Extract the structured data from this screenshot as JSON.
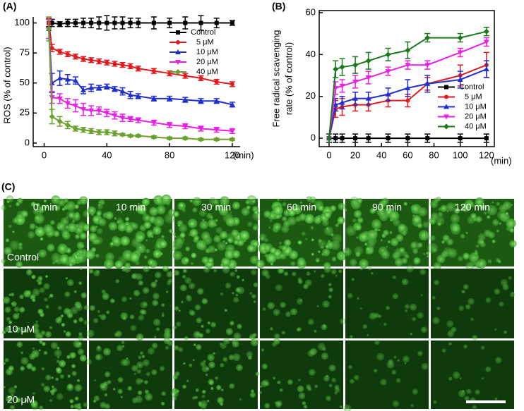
{
  "chart_data": [
    {
      "type": "line",
      "title": "(A)",
      "y_label": "ROS (% of control)",
      "x_label": "(min)",
      "x": [
        3,
        5,
        10,
        15,
        20,
        25,
        30,
        35,
        40,
        45,
        50,
        55,
        60,
        70,
        80,
        90,
        100,
        110,
        120
      ],
      "xlim": [
        -7,
        125
      ],
      "xticks": [
        0,
        40,
        80,
        120
      ],
      "ylim": [
        -3,
        105
      ],
      "yticks": [
        0,
        25,
        50,
        75,
        100
      ],
      "legend": "upper right",
      "series": [
        {
          "name": "Control",
          "color": "#000000",
          "marker": "square",
          "values": [
            100,
            100,
            99,
            100,
            100,
            100,
            100,
            100,
            100,
            100,
            100,
            100,
            100,
            100,
            100,
            100,
            100,
            100,
            100
          ],
          "errors": [
            3,
            3,
            2,
            3,
            3,
            4,
            4,
            5,
            6,
            5,
            5,
            4,
            4,
            5,
            4,
            5,
            6,
            4,
            2
          ]
        },
        {
          "name": "5 μM",
          "color": "#e31a1c",
          "marker": "circle",
          "values": [
            100,
            79,
            76,
            74,
            72,
            70,
            69,
            68,
            67,
            66,
            65,
            64,
            62,
            60,
            58,
            56,
            54,
            51,
            49
          ],
          "errors": [
            4,
            3,
            2,
            2,
            2,
            2,
            2,
            2,
            2,
            2,
            2,
            2,
            2,
            2,
            2,
            2,
            2,
            2,
            2
          ]
        },
        {
          "name": "10 μM",
          "color": "#1f2fd0",
          "marker": "triangle-up",
          "values": [
            95,
            50,
            54,
            53,
            52,
            44,
            46,
            46,
            47,
            45,
            43,
            40,
            39,
            37,
            37,
            36,
            35,
            35,
            32
          ],
          "errors": [
            8,
            8,
            6,
            4,
            3,
            3,
            3,
            2,
            2,
            2,
            3,
            3,
            2,
            2,
            2,
            2,
            2,
            2,
            2
          ]
        },
        {
          "name": "20 μM",
          "color": "#e91ee8",
          "marker": "triangle-down",
          "values": [
            95,
            38,
            37,
            33,
            31,
            28,
            27,
            27,
            25,
            23,
            21,
            20,
            19,
            17,
            15,
            14,
            12,
            11,
            10
          ],
          "errors": [
            8,
            5,
            4,
            4,
            5,
            5,
            4,
            3,
            3,
            3,
            3,
            2,
            2,
            2,
            2,
            2,
            2,
            2,
            2
          ]
        },
        {
          "name": "40 μM",
          "color": "#6aa02c",
          "marker": "diamond",
          "values": [
            95,
            22,
            18,
            15,
            12,
            11,
            10,
            9,
            9,
            8,
            7,
            6,
            6,
            5,
            4,
            4,
            3,
            3,
            3
          ],
          "errors": [
            10,
            6,
            4,
            3,
            2,
            2,
            2,
            2,
            2,
            2,
            1,
            1,
            1,
            1,
            1,
            1,
            1,
            1,
            1
          ]
        }
      ]
    },
    {
      "type": "line",
      "title": "(B)",
      "y_label": [
        "Free radical scavenging",
        "rate (% of control)"
      ],
      "x_label": "(min)",
      "x": [
        0,
        5,
        10,
        20,
        30,
        45,
        60,
        75,
        100,
        120
      ],
      "xlim": [
        -7.5,
        126
      ],
      "xticks": [
        0,
        20,
        40,
        60,
        80,
        100,
        120
      ],
      "ylim": [
        -4,
        61
      ],
      "yticks": [
        0,
        20,
        40,
        60
      ],
      "legend": "center right",
      "series": [
        {
          "name": "Control",
          "color": "#000000",
          "marker": "square",
          "values": [
            0,
            0,
            0,
            0,
            0,
            0,
            0,
            0,
            0,
            0
          ],
          "errors": [
            2,
            2,
            2,
            2,
            2,
            2,
            2,
            2,
            2,
            2
          ]
        },
        {
          "name": "5 μM",
          "color": "#e31a1c",
          "marker": "circle",
          "values": [
            0,
            14,
            15,
            16,
            16,
            18,
            18,
            26,
            30,
            35
          ],
          "errors": [
            2,
            4,
            4,
            3,
            3,
            3,
            3,
            3,
            5,
            6
          ]
        },
        {
          "name": "10 μM",
          "color": "#1f2fd0",
          "marker": "triangle-up",
          "values": [
            0,
            16,
            17,
            19,
            19,
            21,
            24,
            26,
            28,
            33
          ],
          "errors": [
            2,
            3,
            3,
            3,
            3,
            3,
            4,
            4,
            4,
            4
          ]
        },
        {
          "name": "20 μM",
          "color": "#e91ee8",
          "marker": "triangle-down",
          "values": [
            0,
            24,
            25,
            27,
            29,
            32,
            35,
            35,
            41,
            46
          ],
          "errors": [
            2,
            3,
            3,
            3,
            3,
            2,
            2,
            2,
            2,
            2
          ]
        },
        {
          "name": "40 μM",
          "color": "#1b7a1b",
          "marker": "diamond",
          "values": [
            0,
            33,
            34,
            35,
            37,
            40,
            42,
            48,
            48,
            51
          ],
          "errors": [
            2,
            4,
            4,
            4,
            4,
            3,
            4,
            2,
            2,
            2
          ]
        }
      ]
    }
  ],
  "micrographs": {
    "title": "(C)",
    "columns": [
      "0 min",
      "10 min",
      "30 min",
      "60 min",
      "90 min",
      "120 min"
    ],
    "rows": [
      "Control",
      "10 μM",
      "20 μM"
    ]
  }
}
